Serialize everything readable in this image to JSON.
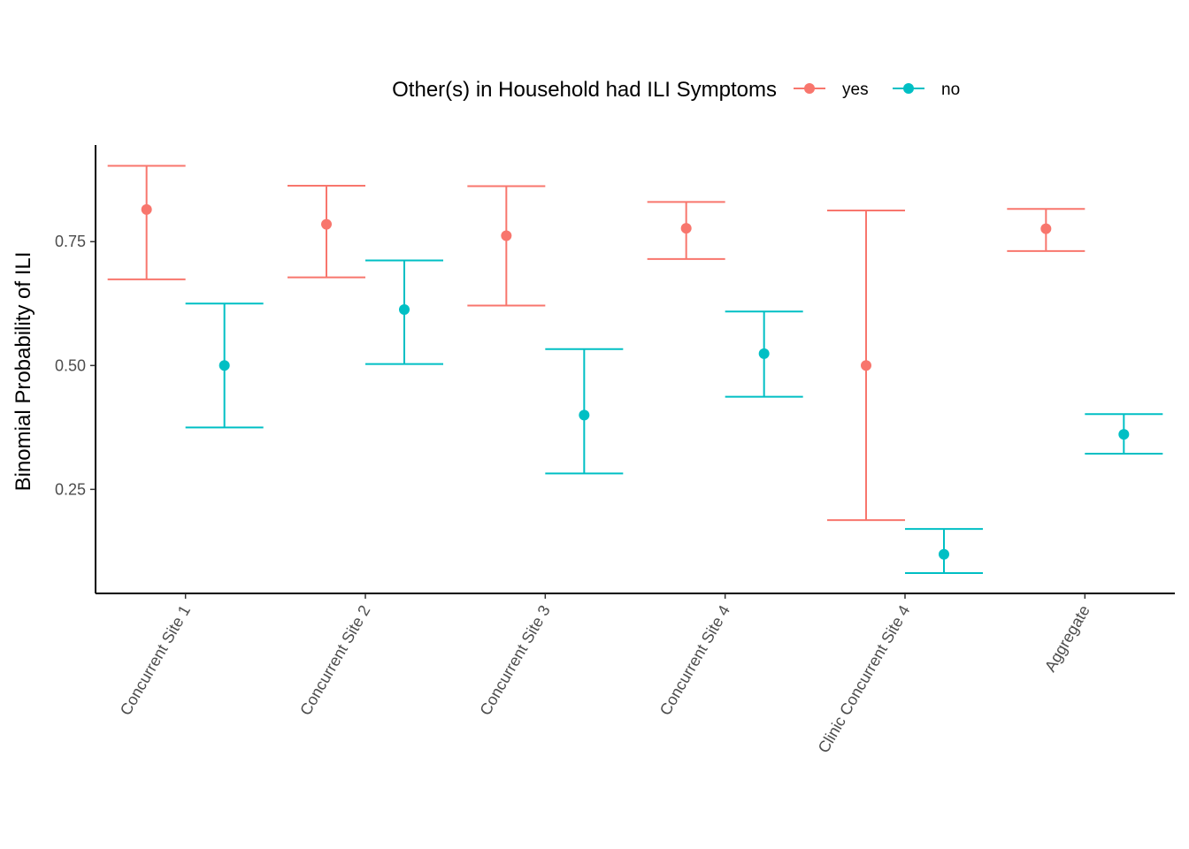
{
  "chart_data": {
    "type": "errorbar",
    "title": "",
    "xlabel": "",
    "ylabel": "Binomial Probability of ILI",
    "ylim": [
      0.04,
      0.945
    ],
    "yticks": [
      0.25,
      0.5,
      0.75
    ],
    "ytick_labels": [
      "0.25",
      "0.50",
      "0.75"
    ],
    "legend_title": "Other(s) in Household had ILI Symptoms",
    "legend_position": "top",
    "grid": false,
    "categories": [
      "Concurrent Site 1",
      "Concurrent Site 2",
      "Concurrent Site 3",
      "Concurrent Site 4",
      "Clinic Concurrent Site 4",
      "Aggregate"
    ],
    "series": [
      {
        "name": "yes",
        "color": "#F8766D",
        "values": [
          0.815,
          0.785,
          0.762,
          0.777,
          0.5,
          0.776
        ],
        "lower": [
          0.674,
          0.678,
          0.621,
          0.715,
          0.188,
          0.731
        ],
        "upper": [
          0.903,
          0.863,
          0.862,
          0.83,
          0.813,
          0.816
        ]
      },
      {
        "name": "no",
        "color": "#00BFC4",
        "values": [
          0.5,
          0.613,
          0.4,
          0.524,
          0.119,
          0.361
        ],
        "lower": [
          0.375,
          0.503,
          0.282,
          0.437,
          0.081,
          0.322
        ],
        "upper": [
          0.625,
          0.712,
          0.533,
          0.609,
          0.17,
          0.402
        ]
      }
    ]
  }
}
